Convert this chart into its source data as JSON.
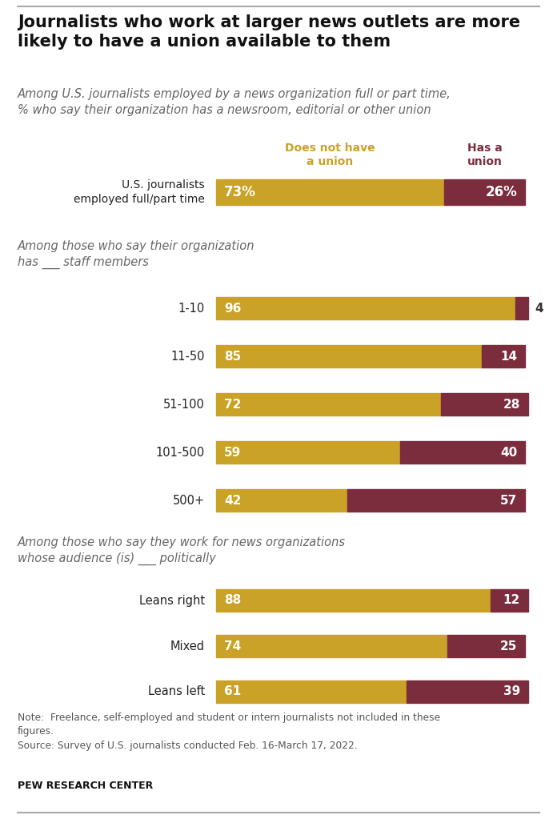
{
  "title": "Journalists who work at larger news outlets are more\nlikely to have a union available to them",
  "subtitle": "Among U.S. journalists employed by a news organization full or part time,\n% who say their organization has a newsroom, editorial or other union",
  "color_no_union": "#C9A227",
  "color_union": "#7B2D3E",
  "legend_no_union": "Does not have\na union",
  "legend_union": "Has a\nunion",
  "section1_label": "U.S. journalists\nemployed full/part time",
  "section1_no_union": 73,
  "section1_union": 26,
  "section1_no_union_label": "73%",
  "section1_union_label": "26%",
  "section2_title": "Among those who say their organization\nhas ___ staff members",
  "section2_categories": [
    "1-10",
    "11-50",
    "51-100",
    "101-500",
    "500+"
  ],
  "section2_no_union": [
    96,
    85,
    72,
    59,
    42
  ],
  "section2_union": [
    4,
    14,
    28,
    40,
    57
  ],
  "section3_title": "Among those who say they work for news organizations\nwhose audience (is) ___ politically",
  "section3_categories": [
    "Leans right",
    "Mixed",
    "Leans left"
  ],
  "section3_no_union": [
    88,
    74,
    61
  ],
  "section3_union": [
    12,
    25,
    39
  ],
  "note": "Note:  Freelance, self-employed and student or intern journalists not included in these\nfigures.\nSource: Survey of U.S. journalists conducted Feb. 16-March 17, 2022.",
  "pew": "PEW RESEARCH CENTER",
  "background_color": "#FFFFFF"
}
